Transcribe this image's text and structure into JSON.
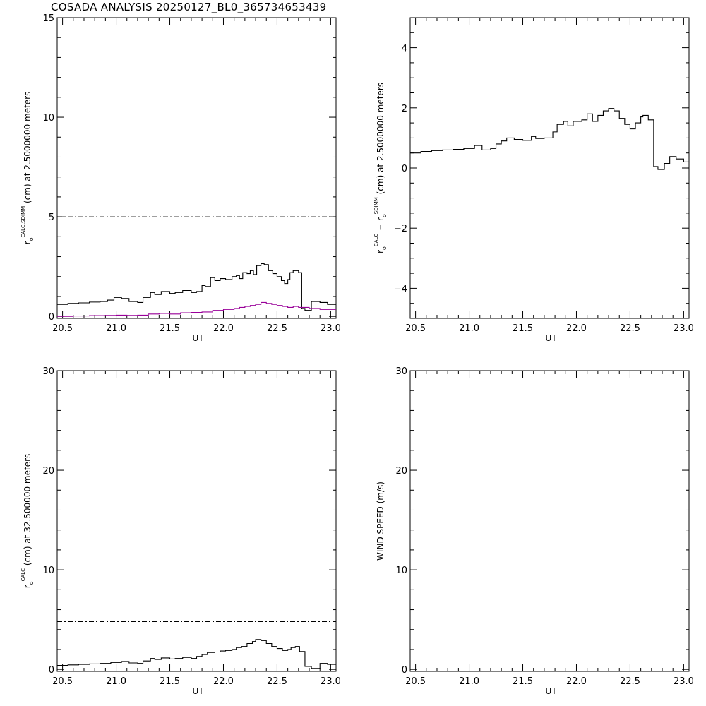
{
  "title": "COSADA ANALYSIS 20250127_BL0_365734653439",
  "chart_data": [
    {
      "id": "top-left",
      "type": "line",
      "xlabel": "UT",
      "ylabel": "r",
      "ylabel_sub": "o",
      "ylabel_sup": "CALC,SDIMM",
      "ylabel_rest": "(cm)  at  2.5000000 meters",
      "xlim": [
        20.45,
        23.05
      ],
      "ylim": [
        -0.1,
        15
      ],
      "xticks": [
        20.5,
        21.0,
        21.5,
        22.0,
        22.5,
        23.0
      ],
      "xtick_labels": [
        "20.5",
        "21.0",
        "21.5",
        "22.0",
        "22.5",
        "23.0"
      ],
      "yticks": [
        0,
        5,
        10,
        15
      ],
      "ytick_labels": [
        "0",
        "5",
        "10",
        "15"
      ],
      "yminor": 1,
      "reference_line": 5.0,
      "series": [
        {
          "color": "#000000",
          "x": [
            20.45,
            20.55,
            20.65,
            20.75,
            20.85,
            20.92,
            20.98,
            21.05,
            21.12,
            21.2,
            21.25,
            21.32,
            21.36,
            21.42,
            21.5,
            21.55,
            21.62,
            21.7,
            21.75,
            21.8,
            21.83,
            21.88,
            21.92,
            21.97,
            22.02,
            22.08,
            22.12,
            22.15,
            22.18,
            22.22,
            22.25,
            22.28,
            22.31,
            22.35,
            22.38,
            22.42,
            22.46,
            22.5,
            22.54,
            22.57,
            22.6,
            22.62,
            22.65,
            22.7,
            22.73,
            22.76,
            22.82,
            22.9,
            22.97
          ],
          "y": [
            0.6,
            0.65,
            0.68,
            0.72,
            0.75,
            0.82,
            0.95,
            0.9,
            0.75,
            0.7,
            0.95,
            1.2,
            1.1,
            1.25,
            1.15,
            1.2,
            1.3,
            1.2,
            1.25,
            1.55,
            1.5,
            1.95,
            1.8,
            1.9,
            1.85,
            2.0,
            2.05,
            1.9,
            2.2,
            2.15,
            2.3,
            2.1,
            2.55,
            2.65,
            2.6,
            2.3,
            2.15,
            2.0,
            1.8,
            1.65,
            1.85,
            2.2,
            2.3,
            2.2,
            0.4,
            0.3,
            0.75,
            0.7,
            0.6
          ]
        },
        {
          "color": "#990099",
          "x": [
            20.45,
            20.6,
            20.75,
            20.9,
            21.0,
            21.1,
            21.2,
            21.3,
            21.4,
            21.5,
            21.6,
            21.7,
            21.8,
            21.9,
            22.0,
            22.1,
            22.15,
            22.2,
            22.25,
            22.3,
            22.35,
            22.4,
            22.45,
            22.5,
            22.55,
            22.6,
            22.65,
            22.7,
            22.8,
            22.9,
            23.0
          ],
          "y": [
            0.0,
            0.02,
            0.04,
            0.05,
            0.06,
            0.05,
            0.06,
            0.12,
            0.15,
            0.12,
            0.18,
            0.2,
            0.22,
            0.3,
            0.35,
            0.4,
            0.45,
            0.5,
            0.55,
            0.6,
            0.7,
            0.65,
            0.6,
            0.55,
            0.5,
            0.45,
            0.5,
            0.45,
            0.4,
            0.35,
            0.35
          ]
        }
      ]
    },
    {
      "id": "top-right",
      "type": "line",
      "xlabel": "UT",
      "ylabel": "r",
      "ylabel_sub": "o",
      "ylabel_sup": "CALC",
      "ylabel_mid": " − r",
      "ylabel_sub2": "o",
      "ylabel_sup2": "SDIMM",
      "ylabel_rest": "(cm)  at  2.5000000 meters",
      "xlim": [
        20.45,
        23.05
      ],
      "ylim": [
        -5,
        5
      ],
      "xticks": [
        20.5,
        21.0,
        21.5,
        22.0,
        22.5,
        23.0
      ],
      "xtick_labels": [
        "20.5",
        "21.0",
        "21.5",
        "22.0",
        "22.5",
        "23.0"
      ],
      "yticks": [
        -4,
        -2,
        0,
        2,
        4
      ],
      "ytick_labels": [
        "−4",
        "−2",
        "0",
        "2",
        "4"
      ],
      "yminor": 0.5,
      "series": [
        {
          "color": "#000000",
          "x": [
            20.45,
            20.55,
            20.65,
            20.75,
            20.85,
            20.95,
            21.05,
            21.12,
            21.2,
            21.25,
            21.3,
            21.35,
            21.42,
            21.5,
            21.58,
            21.62,
            21.7,
            21.78,
            21.82,
            21.88,
            21.92,
            21.97,
            22.05,
            22.1,
            22.15,
            22.2,
            22.25,
            22.3,
            22.35,
            22.4,
            22.45,
            22.5,
            22.55,
            22.6,
            22.62,
            22.67,
            22.72,
            22.76,
            22.82,
            22.87,
            22.93,
            23.0
          ],
          "y": [
            0.5,
            0.55,
            0.58,
            0.6,
            0.62,
            0.65,
            0.75,
            0.6,
            0.65,
            0.8,
            0.9,
            1.0,
            0.95,
            0.92,
            1.05,
            0.98,
            1.0,
            1.2,
            1.45,
            1.55,
            1.4,
            1.55,
            1.6,
            1.8,
            1.55,
            1.75,
            1.9,
            1.98,
            1.9,
            1.65,
            1.45,
            1.3,
            1.5,
            1.7,
            1.75,
            1.6,
            0.05,
            -0.05,
            0.15,
            0.38,
            0.3,
            0.2
          ]
        }
      ]
    },
    {
      "id": "bottom-left",
      "type": "line",
      "xlabel": "UT",
      "ylabel": "r",
      "ylabel_sub": "o",
      "ylabel_sup": "CALC",
      "ylabel_rest": "(cm)  at  32.500000 meters",
      "xlim": [
        20.45,
        23.05
      ],
      "ylim": [
        -0.2,
        30
      ],
      "xticks": [
        20.5,
        21.0,
        21.5,
        22.0,
        22.5,
        23.0
      ],
      "xtick_labels": [
        "20.5",
        "21.0",
        "21.5",
        "22.0",
        "22.5",
        "23.0"
      ],
      "yticks": [
        0,
        10,
        20,
        30
      ],
      "ytick_labels": [
        "0",
        "10",
        "20",
        "30"
      ],
      "yminor": 2,
      "reference_line": 4.8,
      "series": [
        {
          "color": "#000000",
          "x": [
            20.45,
            20.55,
            20.65,
            20.75,
            20.85,
            20.95,
            21.05,
            21.12,
            21.2,
            21.25,
            21.32,
            21.36,
            21.42,
            21.5,
            21.55,
            21.62,
            21.7,
            21.75,
            21.8,
            21.85,
            21.92,
            21.97,
            22.02,
            22.08,
            22.12,
            22.17,
            22.22,
            22.27,
            22.3,
            22.35,
            22.4,
            22.45,
            22.5,
            22.55,
            22.6,
            22.63,
            22.67,
            22.71,
            22.76,
            22.82,
            22.9,
            22.97
          ],
          "y": [
            0.4,
            0.45,
            0.5,
            0.55,
            0.6,
            0.7,
            0.8,
            0.65,
            0.6,
            0.85,
            1.1,
            1.0,
            1.15,
            1.05,
            1.1,
            1.2,
            1.1,
            1.3,
            1.5,
            1.7,
            1.75,
            1.85,
            1.9,
            2.0,
            2.2,
            2.3,
            2.6,
            2.8,
            3.0,
            2.9,
            2.6,
            2.3,
            2.1,
            1.9,
            2.0,
            2.2,
            2.3,
            1.8,
            0.3,
            0.1,
            0.6,
            0.5
          ]
        }
      ]
    },
    {
      "id": "bottom-right",
      "type": "line",
      "xlabel": "UT",
      "ylabel": "WIND SPEED (m/s)",
      "xlim": [
        20.45,
        23.05
      ],
      "ylim": [
        -0.2,
        30
      ],
      "xticks": [
        20.5,
        21.0,
        21.5,
        22.0,
        22.5,
        23.0
      ],
      "xtick_labels": [
        "20.5",
        "21.0",
        "21.5",
        "22.0",
        "22.5",
        "23.0"
      ],
      "yticks": [
        0,
        10,
        20,
        30
      ],
      "ytick_labels": [
        "0",
        "10",
        "20",
        "30"
      ],
      "yminor": 2,
      "series": []
    }
  ]
}
